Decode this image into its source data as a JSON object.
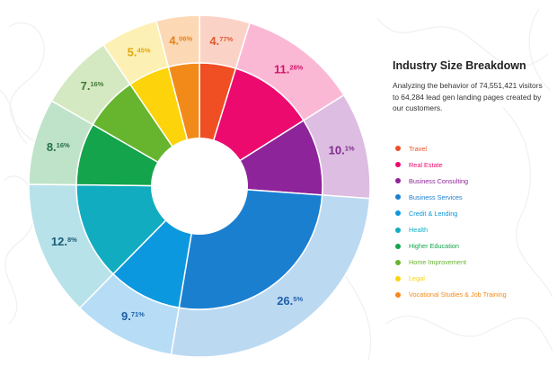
{
  "chart_data": {
    "type": "donut",
    "title": "Industry Size Breakdown",
    "subtitle": "Analyzing the behavior of 74,551,421 visitors to 64,284 lead gen landing pages created by our customers.",
    "unit": "%",
    "series": [
      {
        "label": "Travel",
        "value": 4.77,
        "int_text": "4.",
        "dec_text": "77%",
        "color": "#f04e23",
        "light": "#fbd3c6",
        "label_color": "#e05a2f"
      },
      {
        "label": "Real Estate",
        "value": 11.28,
        "int_text": "11.",
        "dec_text": "28%",
        "color": "#ec0a6f",
        "light": "#fbb8d5",
        "label_color": "#d31468"
      },
      {
        "label": "Business Consulting",
        "value": 10.1,
        "int_text": "10.",
        "dec_text": "1%",
        "color": "#8e2499",
        "light": "#ddbde2",
        "label_color": "#7d2a8c"
      },
      {
        "label": "Business Services",
        "value": 26.5,
        "int_text": "26.",
        "dec_text": "5%",
        "color": "#1b7fd0",
        "light": "#bcd9f2",
        "label_color": "#1f5fa8"
      },
      {
        "label": "Credit & Lending",
        "value": 9.71,
        "int_text": "9.",
        "dec_text": "71%",
        "color": "#0b98de",
        "light": "#b6ddf5",
        "label_color": "#1f5fa8"
      },
      {
        "label": "Health",
        "value": 12.8,
        "int_text": "12.",
        "dec_text": "8%",
        "color": "#12acc1",
        "light": "#b8e2e9",
        "label_color": "#1c5d78"
      },
      {
        "label": "Higher Education",
        "value": 8.16,
        "int_text": "8.",
        "dec_text": "16%",
        "color": "#14a44b",
        "light": "#bfe3c9",
        "label_color": "#24704a"
      },
      {
        "label": "Home Improvement",
        "value": 7.16,
        "int_text": "7.",
        "dec_text": "16%",
        "color": "#67b52f",
        "light": "#d4e9c2",
        "label_color": "#3f7a33"
      },
      {
        "label": "Legal",
        "value": 5.45,
        "int_text": "5.",
        "dec_text": "45%",
        "color": "#fdd30b",
        "light": "#fdf0b5",
        "label_color": "#e1a80f"
      },
      {
        "label": "Vocational Studies & Job Training",
        "value": 4.06,
        "int_text": "4.",
        "dec_text": "06%",
        "color": "#f28a1a",
        "light": "#fcd8b4",
        "label_color": "#e7811c"
      }
    ]
  }
}
